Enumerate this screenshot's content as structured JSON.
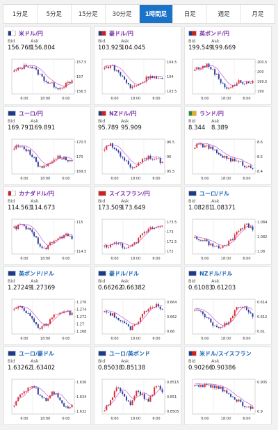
{
  "tabs": [
    {
      "label": "1分足"
    },
    {
      "label": "5分足"
    },
    {
      "label": "15分足"
    },
    {
      "label": "30分足"
    },
    {
      "label": "1時間足"
    },
    {
      "label": "日足"
    },
    {
      "label": "週足"
    },
    {
      "label": "月足"
    }
  ],
  "active_tab": 4,
  "labels": {
    "bid": "Bid",
    "ask": "Ask"
  },
  "colors": {
    "up": "#e03030",
    "down": "#2b3fa3",
    "ma": "#c040c0",
    "active_tab": "#1a73c8"
  },
  "cards": [
    {
      "pair": "米ドル/円",
      "color": "purple",
      "flags": [
        "#1a3a8a",
        "#ffffff"
      ],
      "bid": "156.768",
      "ask": "156.804",
      "chart_data": {
        "type": "candlestick",
        "yticks": [
          "157.5",
          "157",
          "156.5"
        ],
        "xticks": [
          "6:00",
          "18:00",
          "6:00"
        ],
        "trend": [
          157.1,
          157.2,
          157.3,
          157.2,
          157.0,
          156.8,
          156.7,
          156.6,
          156.7,
          156.8
        ]
      }
    },
    {
      "pair": "豪ドル/円",
      "color": "purple",
      "flags": [
        "#1a3a8a",
        "#cc2222"
      ],
      "bid": "103.925",
      "ask": "104.045",
      "chart_data": {
        "type": "candlestick",
        "yticks": [
          "104.5",
          "104",
          "103.5"
        ],
        "xticks": [
          "6:00",
          "18:00",
          "6:00"
        ],
        "trend": [
          104.3,
          104.4,
          104.2,
          104.0,
          103.7,
          103.8,
          103.9,
          104.1,
          104.0,
          103.95
        ]
      }
    },
    {
      "pair": "英ポンド/円",
      "color": "purple",
      "flags": [
        "#1a3a8a",
        "#cc2222"
      ],
      "bid": "199.549",
      "ask": "199.669",
      "chart_data": {
        "type": "candlestick",
        "yticks": [
          "200.5",
          "200",
          "199.5",
          "199"
        ],
        "xticks": [
          "6:00",
          "18:00",
          "6:00"
        ],
        "trend": [
          200.1,
          200.2,
          200.3,
          200.0,
          199.6,
          199.3,
          199.4,
          199.6,
          199.5,
          199.6
        ]
      }
    },
    {
      "pair": "ユーロ/円",
      "color": "purple",
      "flags": [
        "#1a3a8a",
        "#1a3a8a"
      ],
      "bid": "169.791",
      "ask": "169.891",
      "chart_data": {
        "type": "candlestick",
        "yticks": [
          "170.5",
          "170",
          "169.5"
        ],
        "xticks": [
          "6:00",
          "18:00",
          "6:00"
        ],
        "trend": [
          170.3,
          170.4,
          170.2,
          170.0,
          169.6,
          169.7,
          169.9,
          170.0,
          169.9,
          169.85
        ]
      }
    },
    {
      "pair": "NZドル/円",
      "color": "purple",
      "flags": [
        "#1a3a8a",
        "#cc2222"
      ],
      "bid": "95.789",
      "ask": "95.909",
      "chart_data": {
        "type": "candlestick",
        "yticks": [
          "96.5",
          "96",
          "95.5"
        ],
        "xticks": [
          "6:00",
          "18:00",
          "6:00"
        ],
        "trend": [
          96.2,
          96.3,
          96.1,
          95.9,
          95.6,
          95.7,
          95.9,
          95.95,
          95.85,
          95.8
        ]
      }
    },
    {
      "pair": "ランド/円",
      "color": "purple",
      "flags": [
        "#2a8a3a",
        "#e0b020"
      ],
      "bid": "8.344",
      "ask": "8.389",
      "chart_data": {
        "type": "candlestick",
        "yticks": [
          "8.6",
          "8.5",
          "8.4"
        ],
        "xticks": [
          "6:00",
          "18:00",
          "6:00"
        ],
        "trend": [
          8.6,
          8.61,
          8.59,
          8.55,
          8.5,
          8.47,
          8.44,
          8.42,
          8.38,
          8.36
        ]
      }
    },
    {
      "pair": "カナダドル/円",
      "color": "purple",
      "flags": [
        "#cc2222",
        "#ffffff"
      ],
      "bid": "114.563",
      "ask": "114.673",
      "chart_data": {
        "type": "candlestick",
        "yticks": [
          "115",
          "114.5"
        ],
        "xticks": [
          "6:00",
          "18:00",
          "6:00"
        ],
        "trend": [
          114.9,
          115.0,
          114.9,
          114.7,
          114.4,
          114.3,
          114.5,
          114.6,
          114.7,
          114.6
        ]
      }
    },
    {
      "pair": "スイスフラン/円",
      "color": "purple",
      "flags": [
        "#cc2222",
        "#cc2222"
      ],
      "bid": "173.509",
      "ask": "173.649",
      "chart_data": {
        "type": "candlestick",
        "yticks": [
          "173.5",
          "173",
          "172.5",
          "172"
        ],
        "xticks": [
          "6:00",
          "18:00",
          "6:00"
        ],
        "trend": [
          172.2,
          172.3,
          172.4,
          172.2,
          172.1,
          172.5,
          173.0,
          173.3,
          173.4,
          173.5
        ]
      }
    },
    {
      "pair": "ユーロ/ドル",
      "color": "blue",
      "flags": [
        "#1a3a8a",
        "#1a3a8a"
      ],
      "bid": "1.08281",
      "ask": "1.08371",
      "chart_data": {
        "type": "candlestick",
        "yticks": [
          "1.084",
          "1.082",
          "1.08"
        ],
        "xticks": [
          "6:00",
          "18:00",
          "6:00"
        ],
        "trend": [
          1.0815,
          1.081,
          1.0805,
          1.0798,
          1.0795,
          1.0802,
          1.0815,
          1.083,
          1.0838,
          1.0832
        ]
      }
    },
    {
      "pair": "英ポンド/ドル",
      "color": "blue",
      "flags": [
        "#1a3a8a",
        "#1a3a8a"
      ],
      "bid": "1.27249",
      "ask": "1.27369",
      "chart_data": {
        "type": "candlestick",
        "yticks": [
          "1.276",
          "1.274",
          "1.272",
          "1.27",
          "1.268"
        ],
        "xticks": [
          "6:00",
          "18:00",
          "6:00"
        ],
        "trend": [
          1.274,
          1.275,
          1.273,
          1.271,
          1.269,
          1.27,
          1.272,
          1.273,
          1.2735,
          1.2725
        ]
      }
    },
    {
      "pair": "豪ドル/ドル",
      "color": "blue",
      "flags": [
        "#1a3a8a",
        "#1a3a8a"
      ],
      "bid": "0.66262",
      "ask": "0.66382",
      "chart_data": {
        "type": "candlestick",
        "yticks": [
          "0.664",
          "0.662",
          "0.66"
        ],
        "xticks": [
          "6:00",
          "18:00",
          "6:00"
        ],
        "trend": [
          0.6628,
          0.6622,
          0.6615,
          0.6605,
          0.6598,
          0.6608,
          0.6622,
          0.6635,
          0.6638,
          0.6628
        ]
      }
    },
    {
      "pair": "NZドル/ドル",
      "color": "blue",
      "flags": [
        "#1a3a8a",
        "#1a3a8a"
      ],
      "bid": "0.61083",
      "ask": "0.61203",
      "chart_data": {
        "type": "candlestick",
        "yticks": [
          "0.614",
          "0.612",
          "0.61"
        ],
        "xticks": [
          "6:00",
          "18:00",
          "6:00"
        ],
        "trend": [
          0.6125,
          0.6118,
          0.611,
          0.6102,
          0.6098,
          0.6105,
          0.6118,
          0.613,
          0.6125,
          0.6112
        ]
      }
    },
    {
      "pair": "ユーロ/豪ドル",
      "color": "blue",
      "flags": [
        "#1a3a8a",
        "#1a3a8a"
      ],
      "bid": "1.63262",
      "ask": "1.63402",
      "chart_data": {
        "type": "candlestick",
        "yticks": [
          "1.636",
          "1.634",
          "1.632"
        ],
        "xticks": [
          "6:00",
          "18:00",
          "6:00"
        ],
        "trend": [
          1.633,
          1.634,
          1.6348,
          1.6352,
          1.634,
          1.6335,
          1.6345,
          1.6338,
          1.6325,
          1.6328
        ]
      }
    },
    {
      "pair": "ユーロ/英ポンド",
      "color": "blue",
      "flags": [
        "#1a3a8a",
        "#1a3a8a"
      ],
      "bid": "0.85038",
      "ask": "0.85138",
      "chart_data": {
        "type": "candlestick",
        "yticks": [
          "0.8515",
          "0.851",
          "0.8505"
        ],
        "xticks": [
          "6:00",
          "18:00",
          "6:00"
        ],
        "trend": [
          0.8506,
          0.8508,
          0.8512,
          0.8509,
          0.8507,
          0.8511,
          0.8509,
          0.8508,
          0.8512,
          0.851
        ]
      }
    },
    {
      "pair": "米ドル/スイスフラン",
      "color": "blue",
      "flags": [
        "#1a3a8a",
        "#cc2222"
      ],
      "bid": "0.90266",
      "ask": "0.90386",
      "chart_data": {
        "type": "candlestick",
        "yticks": [
          "0.905",
          "0.9"
        ],
        "xticks": [
          "6:00",
          "18:00",
          "6:00"
        ],
        "trend": [
          0.9065,
          0.9068,
          0.9066,
          0.9063,
          0.906,
          0.9052,
          0.904,
          0.9028,
          0.9015,
          0.9018
        ]
      }
    }
  ]
}
